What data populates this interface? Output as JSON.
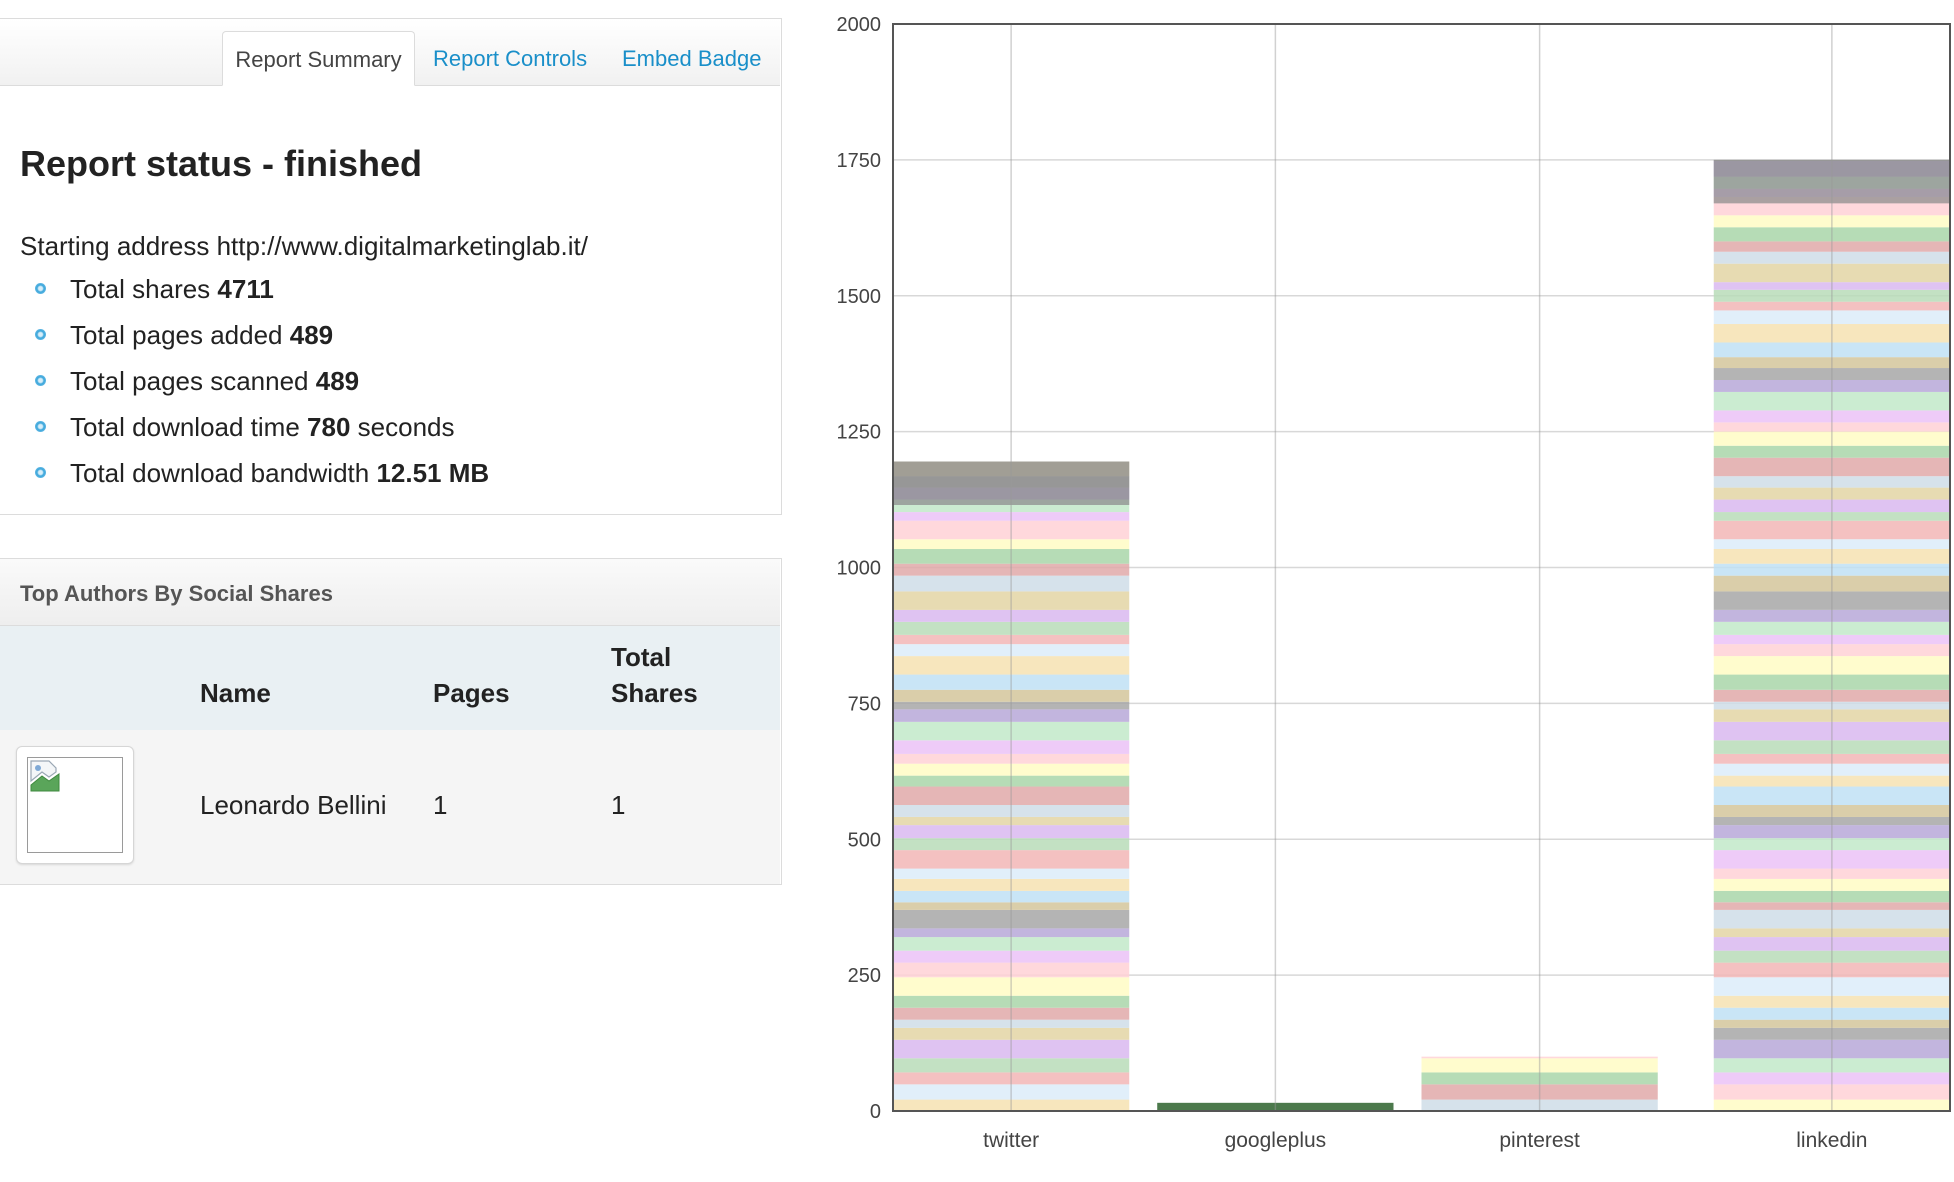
{
  "tabs": {
    "summary": "Report Summary",
    "controls": "Report Controls",
    "badge": "Embed Badge"
  },
  "report": {
    "title": "Report status - finished",
    "start_label": "Starting address",
    "start_url": "http://www.digitalmarketinglab.it/",
    "stats": [
      {
        "label": "Total shares",
        "value": "4711",
        "suffix": ""
      },
      {
        "label": "Total pages added",
        "value": "489",
        "suffix": ""
      },
      {
        "label": "Total pages scanned",
        "value": "489",
        "suffix": ""
      },
      {
        "label": "Total download time",
        "value": "780",
        "suffix": "seconds"
      },
      {
        "label": "Total download bandwidth",
        "value": "12.51 MB",
        "suffix": ""
      }
    ]
  },
  "authors": {
    "heading": "Top Authors By Social Shares",
    "columns": {
      "name": "Name",
      "pages": "Pages",
      "shares_line1": "Total",
      "shares_line2": "Shares"
    },
    "rows": [
      {
        "name": "Leonardo Bellini",
        "pages": "1",
        "shares": "1"
      }
    ]
  },
  "chart_data": {
    "type": "bar",
    "stacked": true,
    "categories": [
      "twitter",
      "googleplus",
      "pinterest",
      "linkedin"
    ],
    "values": [
      1195,
      15,
      100,
      1750
    ],
    "ylim": [
      0,
      2000
    ],
    "yticks": [
      0,
      250,
      500,
      750,
      1000,
      1250,
      1500,
      1750,
      2000
    ],
    "grid": true,
    "segment_palette": [
      "#f6e2b1",
      "#dcecf9",
      "#f2b6b6",
      "#b9dcb9",
      "#d9b9f0",
      "#e3d5a4",
      "#cfdde7",
      "#e0a9a9",
      "#a9d6a9",
      "#fffbc4",
      "#ffd1d6",
      "#ebc2f7",
      "#c2e9c9",
      "#b7a8d8",
      "#a7a7a7",
      "#d3c69b",
      "#bfe0f4"
    ]
  }
}
